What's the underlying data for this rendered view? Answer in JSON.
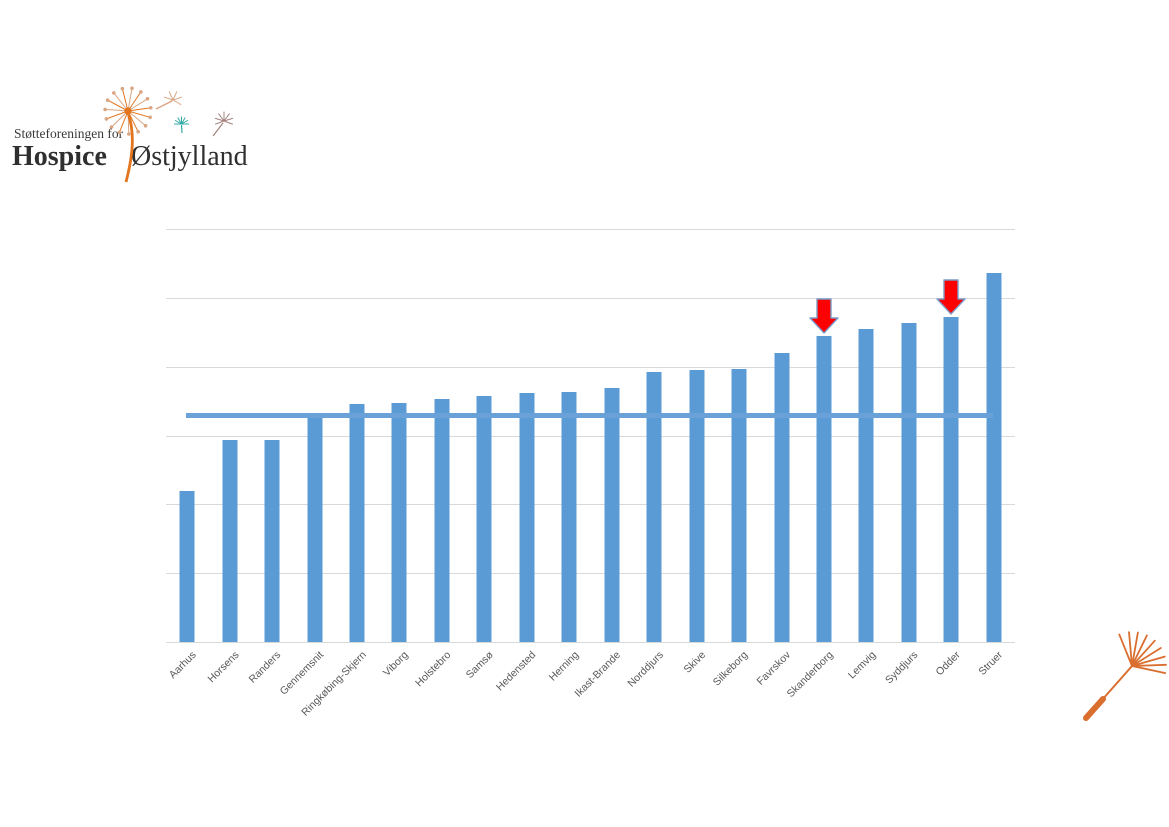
{
  "logo": {
    "tagline": "Støtteforeningen for",
    "name_bold": "Hospice",
    "name_light": "Østjylland"
  },
  "chart_data": {
    "type": "bar",
    "title": "",
    "xlabel": "",
    "ylabel": "",
    "legend": "none",
    "grid": true,
    "gridline_count": 7,
    "y_axis_tick_labels_visible": false,
    "values_unit": "percent_of_plot_height (no numeric axis labels shown in chart)",
    "ylim": [
      0,
      100
    ],
    "categories": [
      "Aarhus",
      "Horsens",
      "Randers",
      "Gennemsnit",
      "Ringkøbing-Skjern",
      "Viborg",
      "Holstebro",
      "Samsø",
      "Hedensted",
      "Herning",
      "Ikast-Brande",
      "Norddjurs",
      "Skive",
      "Silkeborg",
      "Favrskov",
      "Skanderborg",
      "Lemvig",
      "Syddjurs",
      "Odder",
      "Struer"
    ],
    "values": [
      36.5,
      49.0,
      49.0,
      55.5,
      57.7,
      57.9,
      58.8,
      59.6,
      60.2,
      60.6,
      61.5,
      65.5,
      65.9,
      66.1,
      70.1,
      74.1,
      75.8,
      77.2,
      78.6,
      89.3
    ],
    "average_line": {
      "label": "Gennemsnit",
      "value": 55.5
    },
    "annotations": [
      {
        "type": "down-arrow",
        "category": "Skanderborg"
      },
      {
        "type": "down-arrow",
        "category": "Odder"
      }
    ],
    "colors": {
      "bar": "#5b9bd5",
      "average_line": "#69a1d8",
      "gridline": "#d9d9d9",
      "category_label": "#595959",
      "arrow_fill": "#ff0000",
      "arrow_stroke": "#7c9cc8",
      "logo_orange": "#e2751d",
      "logo_tan": "#d9a583",
      "logo_teal": "#2fa8a4",
      "logo_brown": "#a3827d",
      "seed_orange": "#d96e2e",
      "logo_text": "#2f2f2f"
    }
  }
}
